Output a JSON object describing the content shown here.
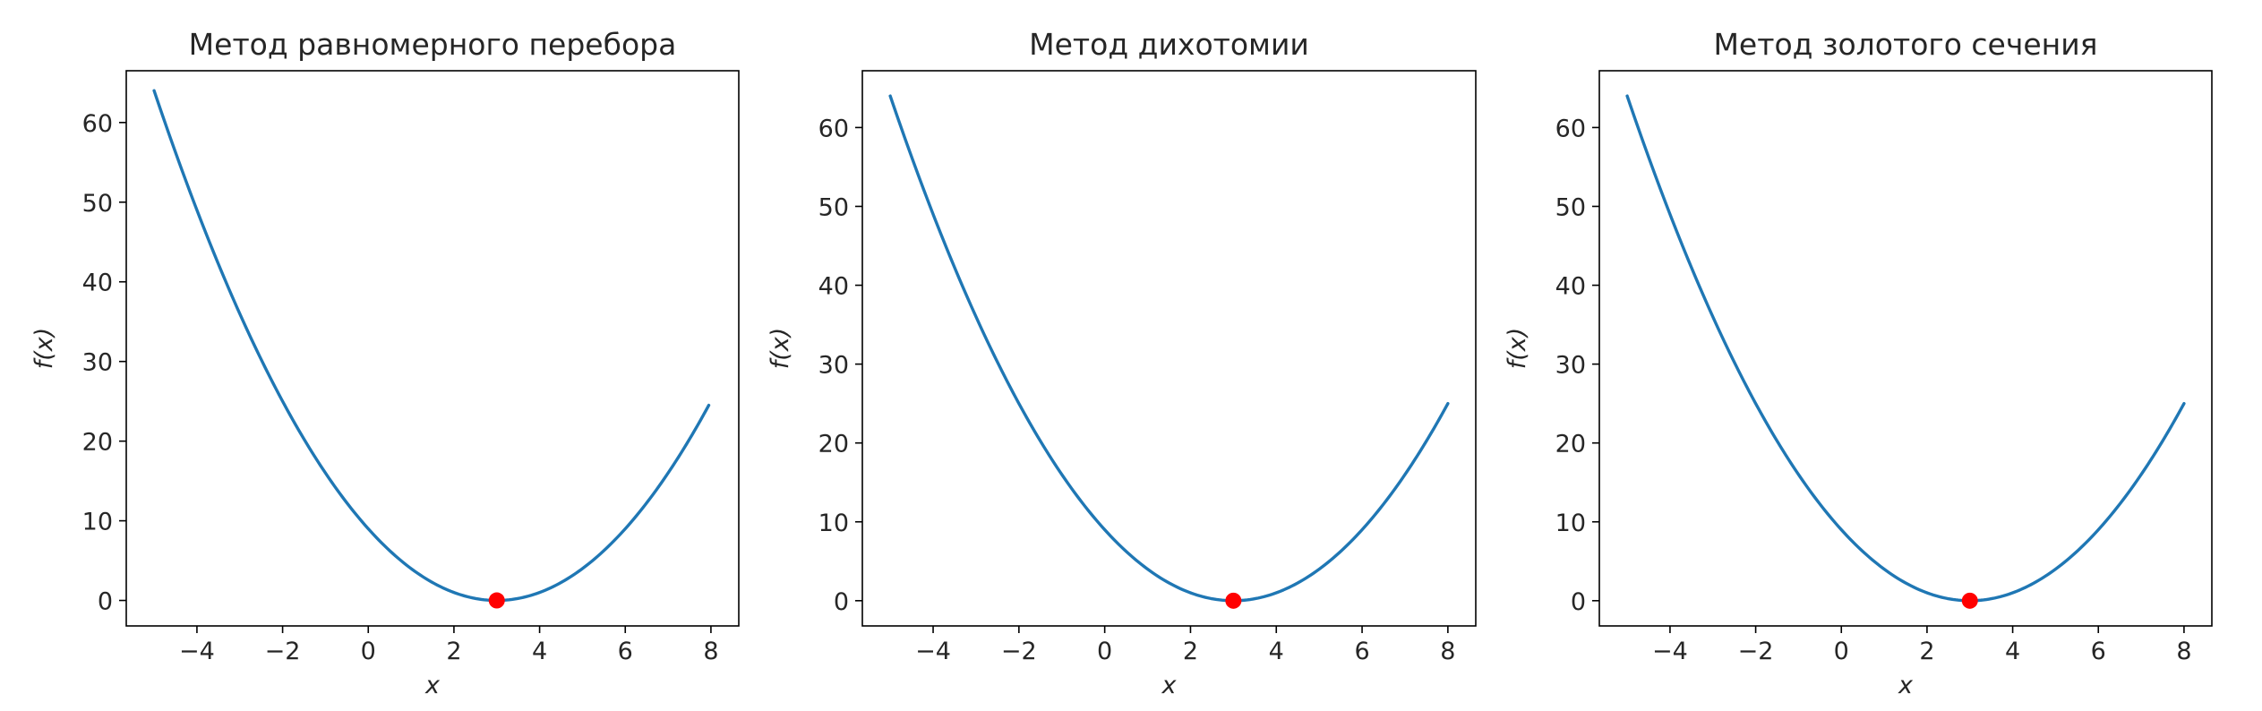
{
  "chart_data": [
    {
      "type": "line",
      "title": "Метод равномерного перебора",
      "xlabel": "x",
      "ylabel": "f(x)",
      "xlim": [
        -5.65,
        8.65
      ],
      "ylim": [
        -3.2,
        66.5
      ],
      "xticks": [
        -4,
        -2,
        0,
        2,
        4,
        6,
        8
      ],
      "xtick_labels": [
        "−4",
        "−2",
        "0",
        "2",
        "4",
        "6",
        "8"
      ],
      "yticks": [
        0,
        10,
        20,
        30,
        40,
        50,
        60
      ],
      "ytick_labels": [
        "0",
        "10",
        "20",
        "30",
        "40",
        "50",
        "60"
      ],
      "series": [
        {
          "function": "(x - 3)^2",
          "x_range": [
            -5,
            7.95
          ],
          "color": "#1f77b4"
        }
      ],
      "points": [
        {
          "x": 3,
          "y": 0,
          "color": "#ff0000",
          "marker": "circle"
        }
      ],
      "grid": false
    },
    {
      "type": "line",
      "title": "Метод дихотомии",
      "xlabel": "x",
      "ylabel": "f(x)",
      "xlim": [
        -5.65,
        8.65
      ],
      "ylim": [
        -3.2,
        67.2
      ],
      "xticks": [
        -4,
        -2,
        0,
        2,
        4,
        6,
        8
      ],
      "xtick_labels": [
        "−4",
        "−2",
        "0",
        "2",
        "4",
        "6",
        "8"
      ],
      "yticks": [
        0,
        10,
        20,
        30,
        40,
        50,
        60
      ],
      "ytick_labels": [
        "0",
        "10",
        "20",
        "30",
        "40",
        "50",
        "60"
      ],
      "series": [
        {
          "function": "(x - 3)^2",
          "x_range": [
            -5,
            8
          ],
          "color": "#1f77b4"
        }
      ],
      "points": [
        {
          "x": 3,
          "y": 0,
          "color": "#ff0000",
          "marker": "circle"
        }
      ],
      "grid": false
    },
    {
      "type": "line",
      "title": "Метод золотого сечения",
      "xlabel": "x",
      "ylabel": "f(x)",
      "xlim": [
        -5.65,
        8.65
      ],
      "ylim": [
        -3.2,
        67.2
      ],
      "xticks": [
        -4,
        -2,
        0,
        2,
        4,
        6,
        8
      ],
      "xtick_labels": [
        "−4",
        "−2",
        "0",
        "2",
        "4",
        "6",
        "8"
      ],
      "yticks": [
        0,
        10,
        20,
        30,
        40,
        50,
        60
      ],
      "ytick_labels": [
        "0",
        "10",
        "20",
        "30",
        "40",
        "50",
        "60"
      ],
      "series": [
        {
          "function": "(x - 3)^2",
          "x_range": [
            -5,
            8
          ],
          "color": "#1f77b4"
        }
      ],
      "points": [
        {
          "x": 3,
          "y": 0,
          "color": "#ff0000",
          "marker": "circle"
        }
      ],
      "grid": false
    }
  ]
}
